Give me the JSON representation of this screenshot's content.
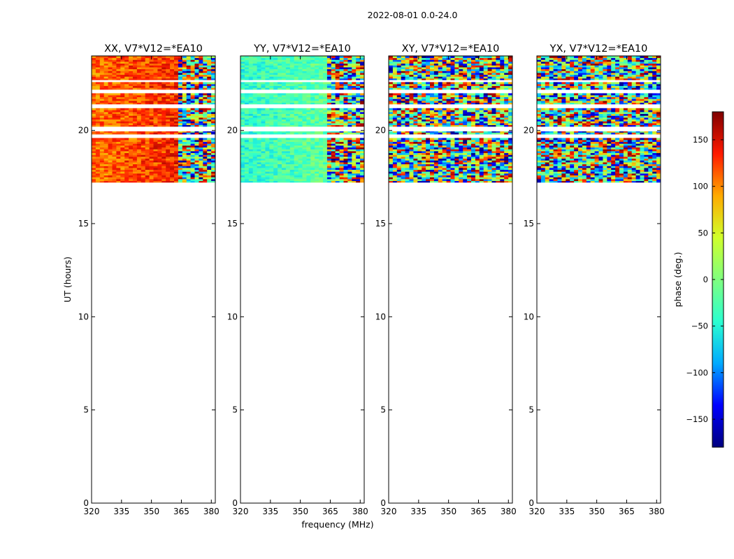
{
  "figure": {
    "suptitle": "2022-08-01 0.0-24.0",
    "xlabel": "frequency (MHz)",
    "ylabel": "UT (hours)"
  },
  "colorbar": {
    "label": "phase (deg.)",
    "ticks": [
      150,
      100,
      50,
      0,
      -50,
      -100,
      -150
    ],
    "tick_labels": [
      "150",
      "100",
      "50",
      "0",
      "−50",
      "−100",
      "−150"
    ],
    "range": [
      -180,
      180
    ],
    "colormap": [
      "#00007f",
      "#0000ff",
      "#00aaff",
      "#2bffd0",
      "#7fff7f",
      "#d0ff2b",
      "#ffaa00",
      "#ff1a00",
      "#7f0000"
    ]
  },
  "chart_data": {
    "type": "heatmap",
    "title": "2022-08-01 0.0-24.0",
    "xlabel": "frequency (MHz)",
    "ylabel": "UT (hours)",
    "xlim": [
      320,
      382
    ],
    "ylim": [
      0,
      24
    ],
    "xticks": [
      320,
      335,
      350,
      365,
      380
    ],
    "yticks": [
      0,
      5,
      10,
      15,
      20
    ],
    "colorbar_label": "phase (deg.)",
    "colorbar_range": [
      -180,
      180
    ],
    "data_time_range": [
      17.2,
      24.0
    ],
    "data_gaps": [
      [
        17.0,
        17.2
      ],
      [
        19.6,
        19.75
      ],
      [
        19.95,
        20.2
      ],
      [
        21.2,
        21.4
      ],
      [
        22.0,
        22.15
      ],
      [
        22.6,
        22.7
      ]
    ],
    "panels": [
      {
        "title": "XX, V7*V12=*EA10",
        "mean_phase_deg": 120,
        "phase_gradient": "stable, red-orange across band",
        "noise": "low"
      },
      {
        "title": "YY, V7*V12=*EA10",
        "mean_phase_deg": -30,
        "phase_gradient": "stable, cyan-green across band",
        "noise": "low"
      },
      {
        "title": "XY, V7*V12=*EA10",
        "mean_phase_deg": 0,
        "phase_gradient": "random",
        "noise": "high"
      },
      {
        "title": "YX, V7*V12=*EA10",
        "mean_phase_deg": 0,
        "phase_gradient": "random",
        "noise": "high"
      }
    ]
  }
}
